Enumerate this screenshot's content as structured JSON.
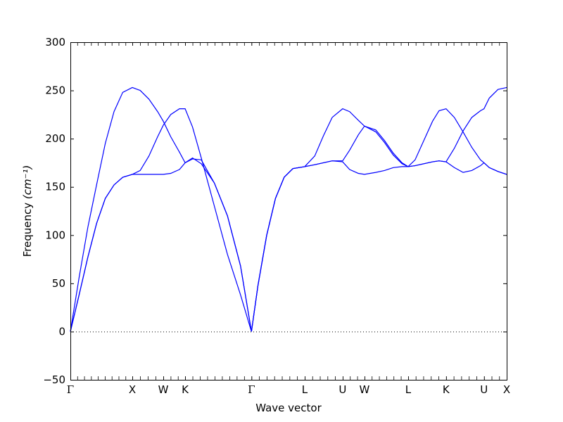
{
  "chart_data": {
    "type": "line",
    "xlabel": "Wave vector",
    "ylabel": "Frequency",
    "ylabel_unit": "(cm⁻¹)",
    "ylim": [
      -50,
      300
    ],
    "yticks": [
      -50,
      0,
      50,
      100,
      150,
      200,
      250,
      300
    ],
    "xlim": [
      0,
      1
    ],
    "high_symmetry_points": [
      {
        "label": "Γ",
        "x": 0.0
      },
      {
        "label": "X",
        "x": 0.142
      },
      {
        "label": "W",
        "x": 0.213
      },
      {
        "label": "K",
        "x": 0.263
      },
      {
        "label": "Γ",
        "x": 0.415
      },
      {
        "label": "L",
        "x": 0.537
      },
      {
        "label": "U",
        "x": 0.624
      },
      {
        "label": "W",
        "x": 0.674
      },
      {
        "label": "L",
        "x": 0.774
      },
      {
        "label": "K",
        "x": 0.861
      },
      {
        "label": "U",
        "x": 0.948
      },
      {
        "label": "X",
        "x": 1.0
      }
    ],
    "zero_line": true,
    "line_color": "#0000ff",
    "series": [
      {
        "values": [
          [
            0.0,
            0
          ],
          [
            0.02,
            56
          ],
          [
            0.04,
            108
          ],
          [
            0.06,
            152
          ],
          [
            0.08,
            195
          ],
          [
            0.1,
            228
          ],
          [
            0.12,
            248
          ],
          [
            0.142,
            253
          ],
          [
            0.16,
            250
          ],
          [
            0.18,
            241
          ],
          [
            0.2,
            228
          ],
          [
            0.213,
            218
          ],
          [
            0.23,
            202
          ],
          [
            0.25,
            186
          ],
          [
            0.263,
            175
          ],
          [
            0.28,
            180
          ],
          [
            0.3,
            174
          ],
          [
            0.33,
            154
          ],
          [
            0.36,
            120
          ],
          [
            0.39,
            68
          ],
          [
            0.415,
            0
          ]
        ]
      },
      {
        "values": [
          [
            0.0,
            0
          ],
          [
            0.02,
            38
          ],
          [
            0.04,
            77
          ],
          [
            0.06,
            112
          ],
          [
            0.08,
            138
          ],
          [
            0.1,
            152
          ],
          [
            0.12,
            160
          ],
          [
            0.142,
            163
          ],
          [
            0.16,
            167
          ],
          [
            0.18,
            182
          ],
          [
            0.2,
            202
          ],
          [
            0.213,
            214
          ],
          [
            0.23,
            225
          ],
          [
            0.25,
            231
          ],
          [
            0.263,
            231
          ],
          [
            0.28,
            212
          ],
          [
            0.3,
            180
          ],
          [
            0.33,
            130
          ],
          [
            0.36,
            80
          ],
          [
            0.39,
            38
          ],
          [
            0.415,
            0
          ]
        ]
      },
      {
        "values": [
          [
            0.0,
            0
          ],
          [
            0.02,
            38
          ],
          [
            0.04,
            77
          ],
          [
            0.06,
            112
          ],
          [
            0.08,
            138
          ],
          [
            0.1,
            152
          ],
          [
            0.12,
            160
          ],
          [
            0.142,
            163
          ],
          [
            0.16,
            163
          ],
          [
            0.18,
            163
          ],
          [
            0.2,
            163
          ],
          [
            0.213,
            163
          ],
          [
            0.23,
            164
          ],
          [
            0.25,
            168
          ],
          [
            0.263,
            175
          ],
          [
            0.28,
            179
          ],
          [
            0.3,
            178
          ],
          [
            0.33,
            154
          ],
          [
            0.36,
            120
          ],
          [
            0.39,
            68
          ],
          [
            0.415,
            0
          ]
        ]
      },
      {
        "values": [
          [
            0.415,
            0
          ],
          [
            0.43,
            48
          ],
          [
            0.45,
            100
          ],
          [
            0.47,
            138
          ],
          [
            0.49,
            160
          ],
          [
            0.51,
            169
          ],
          [
            0.537,
            171
          ],
          [
            0.56,
            182
          ],
          [
            0.58,
            203
          ],
          [
            0.6,
            222
          ],
          [
            0.624,
            231
          ],
          [
            0.64,
            228
          ],
          [
            0.66,
            219
          ],
          [
            0.674,
            213
          ],
          [
            0.7,
            207
          ],
          [
            0.72,
            196
          ],
          [
            0.74,
            183
          ],
          [
            0.76,
            174
          ],
          [
            0.774,
            171
          ],
          [
            0.79,
            178
          ],
          [
            0.81,
            198
          ],
          [
            0.83,
            218
          ],
          [
            0.845,
            229
          ],
          [
            0.861,
            231
          ],
          [
            0.88,
            222
          ],
          [
            0.9,
            207
          ],
          [
            0.92,
            191
          ],
          [
            0.94,
            178
          ],
          [
            0.948,
            175
          ],
          [
            0.96,
            170
          ],
          [
            0.98,
            166
          ],
          [
            1.0,
            163
          ]
        ]
      },
      {
        "values": [
          [
            0.415,
            0
          ],
          [
            0.43,
            48
          ],
          [
            0.45,
            100
          ],
          [
            0.47,
            138
          ],
          [
            0.49,
            160
          ],
          [
            0.51,
            169
          ],
          [
            0.537,
            171
          ],
          [
            0.56,
            173
          ],
          [
            0.58,
            175
          ],
          [
            0.6,
            177
          ],
          [
            0.624,
            177
          ],
          [
            0.64,
            188
          ],
          [
            0.66,
            204
          ],
          [
            0.674,
            213
          ],
          [
            0.7,
            209
          ],
          [
            0.72,
            198
          ],
          [
            0.74,
            185
          ],
          [
            0.76,
            175
          ],
          [
            0.774,
            171
          ],
          [
            0.79,
            172
          ],
          [
            0.81,
            174
          ],
          [
            0.83,
            176
          ],
          [
            0.845,
            177
          ],
          [
            0.861,
            176
          ],
          [
            0.88,
            170
          ],
          [
            0.9,
            165
          ],
          [
            0.92,
            167
          ],
          [
            0.94,
            172
          ],
          [
            0.948,
            175
          ],
          [
            0.96,
            170
          ],
          [
            0.98,
            166
          ],
          [
            1.0,
            163
          ]
        ]
      },
      {
        "values": [
          [
            0.415,
            0
          ],
          [
            0.43,
            48
          ],
          [
            0.45,
            100
          ],
          [
            0.47,
            138
          ],
          [
            0.49,
            160
          ],
          [
            0.51,
            169
          ],
          [
            0.537,
            171
          ],
          [
            0.56,
            173
          ],
          [
            0.58,
            175
          ],
          [
            0.6,
            177
          ],
          [
            0.624,
            176
          ],
          [
            0.64,
            168
          ],
          [
            0.66,
            164
          ],
          [
            0.674,
            163
          ],
          [
            0.7,
            165
          ],
          [
            0.72,
            167
          ],
          [
            0.74,
            170
          ],
          [
            0.76,
            171
          ],
          [
            0.774,
            171
          ],
          [
            0.79,
            172
          ],
          [
            0.81,
            174
          ],
          [
            0.83,
            176
          ],
          [
            0.845,
            177
          ],
          [
            0.861,
            176
          ],
          [
            0.88,
            190
          ],
          [
            0.9,
            208
          ],
          [
            0.92,
            222
          ],
          [
            0.94,
            229
          ],
          [
            0.948,
            231
          ],
          [
            0.96,
            242
          ],
          [
            0.98,
            251
          ],
          [
            1.0,
            253
          ]
        ]
      }
    ]
  }
}
